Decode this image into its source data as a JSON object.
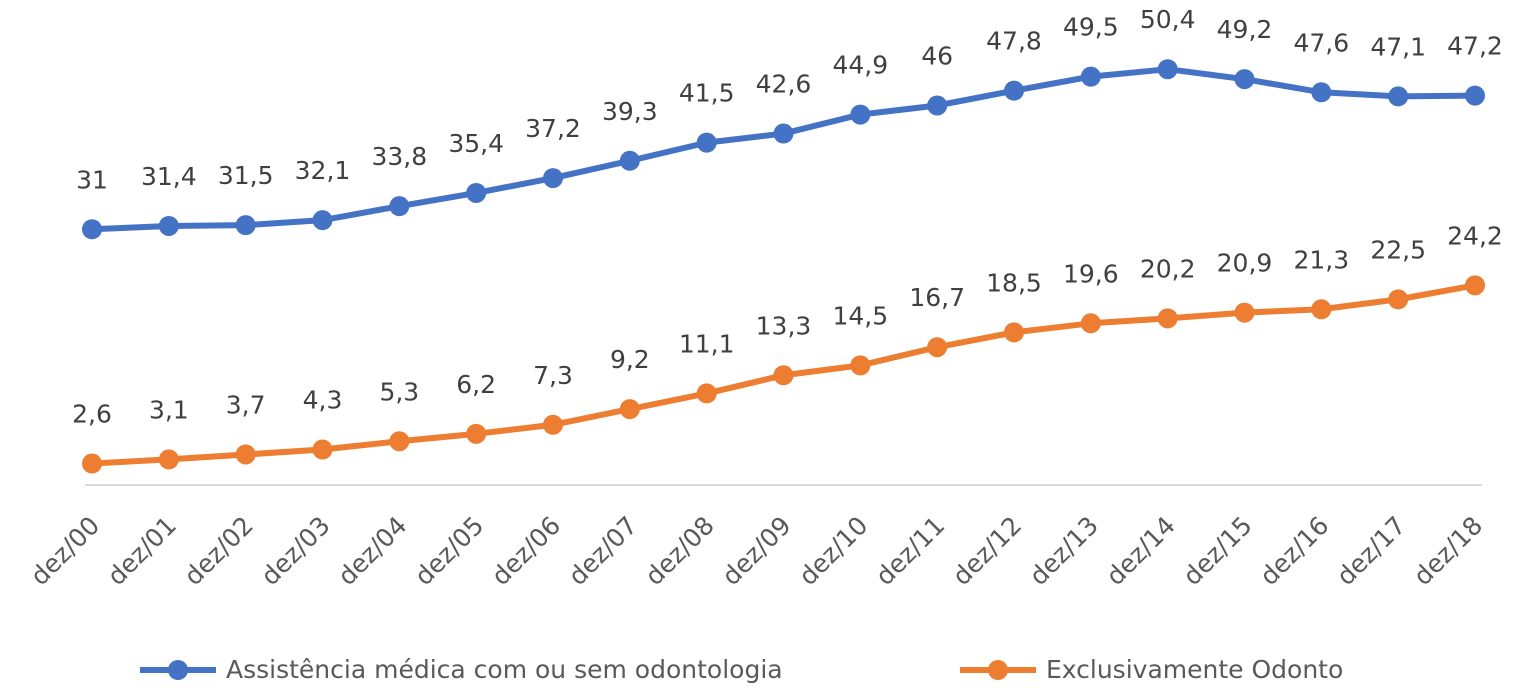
{
  "chart_data": {
    "type": "line",
    "categories": [
      "dez/00",
      "dez/01",
      "dez/02",
      "dez/03",
      "dez/04",
      "dez/05",
      "dez/06",
      "dez/07",
      "dez/08",
      "dez/09",
      "dez/10",
      "dez/11",
      "dez/12",
      "dez/13",
      "dez/14",
      "dez/15",
      "dez/16",
      "dez/17",
      "dez/18"
    ],
    "series": [
      {
        "name": "Assistência médica com ou sem odontologia",
        "color": "#4472c4",
        "values": [
          31,
          31.4,
          31.5,
          32.1,
          33.8,
          35.4,
          37.2,
          39.3,
          41.5,
          42.6,
          44.9,
          46,
          47.8,
          49.5,
          50.4,
          49.2,
          47.6,
          47.1,
          47.2
        ],
        "value_labels": [
          "31",
          "31,4",
          "31,5",
          "32,1",
          "33,8",
          "35,4",
          "37,2",
          "39,3",
          "41,5",
          "42,6",
          "44,9",
          "46",
          "47,8",
          "49,5",
          "50,4",
          "49,2",
          "47,6",
          "47,1",
          "47,2"
        ]
      },
      {
        "name": "Exclusivamente Odonto",
        "color": "#ed7d31",
        "values": [
          2.6,
          3.1,
          3.7,
          4.3,
          5.3,
          6.2,
          7.3,
          9.2,
          11.1,
          13.3,
          14.5,
          16.7,
          18.5,
          19.6,
          20.2,
          20.9,
          21.3,
          22.5,
          24.2
        ],
        "value_labels": [
          "2,6",
          "3,1",
          "3,7",
          "4,3",
          "5,3",
          "6,2",
          "7,3",
          "9,2",
          "11,1",
          "13,3",
          "14,5",
          "16,7",
          "18,5",
          "19,6",
          "20,2",
          "20,9",
          "21,3",
          "22,5",
          "24,2"
        ]
      }
    ],
    "ylim": [
      0,
      55
    ]
  }
}
